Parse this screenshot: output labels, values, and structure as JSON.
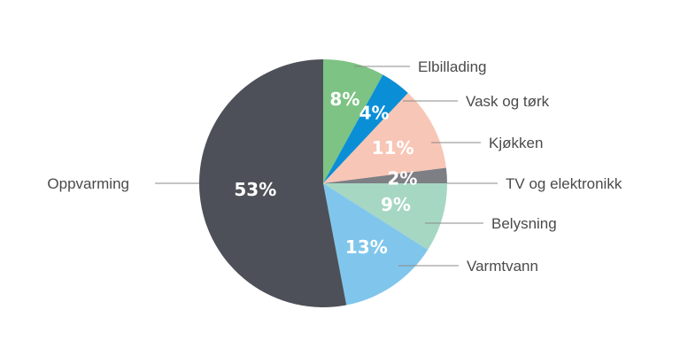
{
  "chart_data": {
    "type": "pie",
    "start_angle_deg": 0,
    "direction": "clockwise",
    "slices": [
      {
        "label": "Elbillading",
        "value": 8,
        "display": "8%",
        "color": "#7dc384"
      },
      {
        "label": "Vask og tørk",
        "value": 4,
        "display": "4%",
        "color": "#0a8fd6"
      },
      {
        "label": "Kjøkken",
        "value": 11,
        "display": "11%",
        "color": "#f8c6b6"
      },
      {
        "label": "TV og elektronikk",
        "value": 2,
        "display": "2%",
        "color": "#7d7f84"
      },
      {
        "label": "Belysning",
        "value": 9,
        "display": "9%",
        "color": "#a6d7c3"
      },
      {
        "label": "Varmtvann",
        "value": 13,
        "display": "13%",
        "color": "#80c6ec"
      },
      {
        "label": "Oppvarming",
        "value": 53,
        "display": "53%",
        "color": "#4d5058"
      }
    ]
  }
}
